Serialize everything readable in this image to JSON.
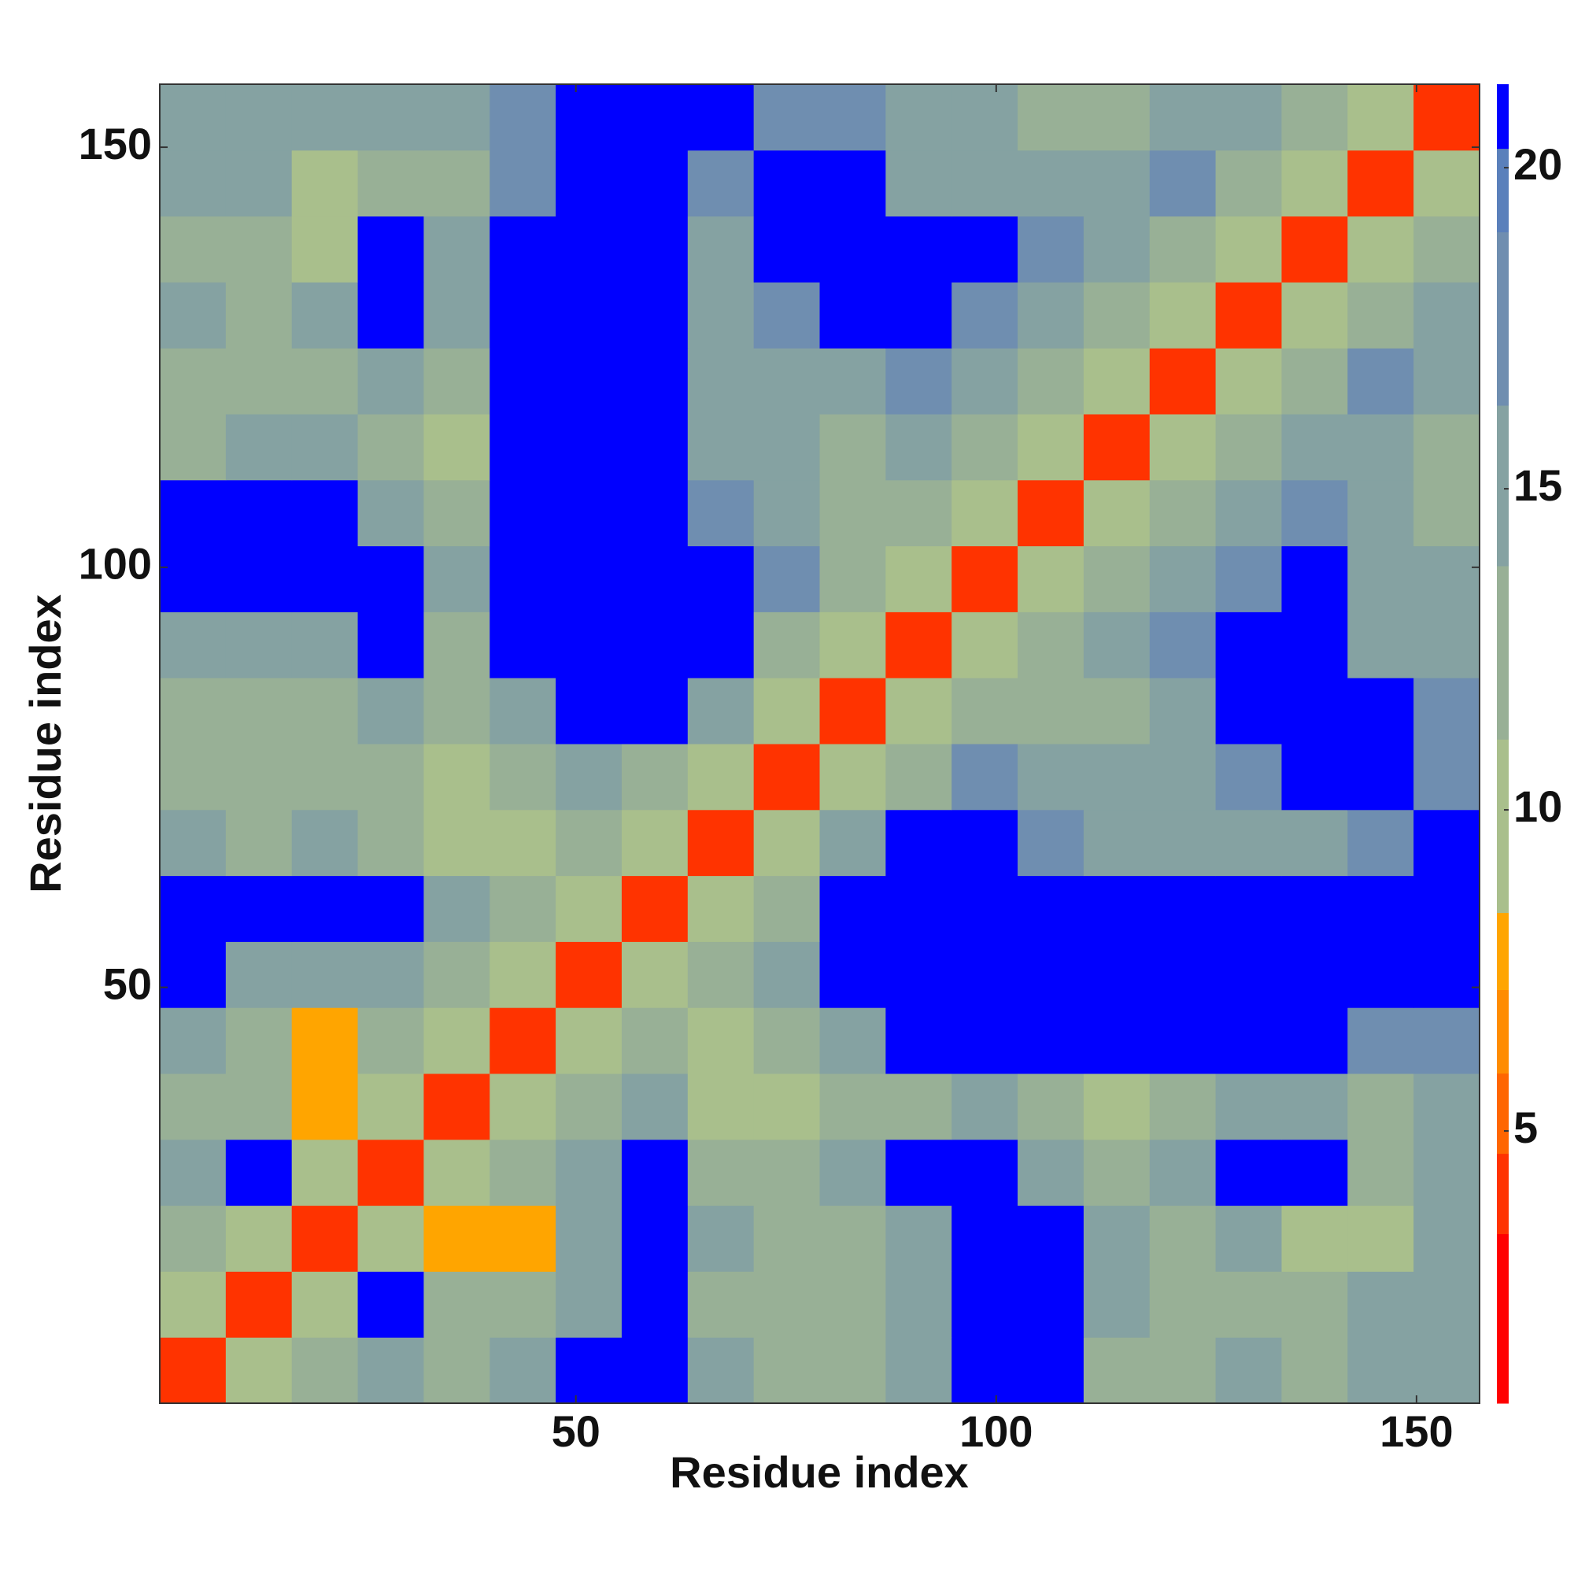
{
  "chart_data": {
    "type": "heatmap",
    "xlabel": "Residue index",
    "ylabel": "Residue index",
    "xlim": [
      0.5,
      157.5
    ],
    "ylim": [
      0.5,
      157.5
    ],
    "xticks": [
      50,
      100,
      150
    ],
    "yticks": [
      50,
      100,
      150
    ],
    "zlim": [
      0.76,
      21.3
    ],
    "colorbar_ticks": [
      5,
      10,
      15,
      20
    ],
    "levels": [
      0.76,
      3.4,
      4.65,
      5.9,
      7.2,
      8.4,
      11.1,
      13.8,
      16.3,
      19.0,
      20.3,
      21.3
    ],
    "level_colors": [
      "#ff0000",
      "#ff3300",
      "#ff6600",
      "#ff8c00",
      "#ffa500",
      "#a9bf8c",
      "#98b096",
      "#85a2a2",
      "#6f8eb0",
      "#5a80bb",
      "#0000ff"
    ],
    "z": [
      [
        4,
        10,
        13,
        16,
        13,
        16,
        21,
        21,
        16,
        13,
        13,
        16,
        21,
        21,
        13,
        13,
        16,
        13,
        16,
        16
      ],
      [
        10,
        4,
        10,
        21,
        13,
        13,
        16,
        21,
        13,
        13,
        13,
        16,
        21,
        21,
        16,
        13,
        13,
        13,
        16,
        16
      ],
      [
        13,
        10,
        4,
        10,
        8,
        8,
        16,
        21,
        16,
        13,
        13,
        16,
        21,
        21,
        16,
        13,
        16,
        10,
        10,
        16
      ],
      [
        16,
        21,
        10,
        4,
        10,
        13,
        16,
        21,
        13,
        13,
        16,
        21,
        21,
        16,
        13,
        16,
        21,
        21,
        13,
        16
      ],
      [
        13,
        13,
        8,
        10,
        4,
        10,
        13,
        16,
        10,
        10,
        13,
        13,
        16,
        13,
        10,
        13,
        16,
        16,
        13,
        16
      ],
      [
        16,
        13,
        8,
        13,
        10,
        4,
        10,
        13,
        10,
        13,
        16,
        21,
        21,
        21,
        21,
        21,
        21,
        21,
        19,
        19
      ],
      [
        21,
        16,
        16,
        16,
        13,
        10,
        4,
        10,
        13,
        16,
        21,
        21,
        21,
        21,
        21,
        21,
        21,
        21,
        21,
        21
      ],
      [
        21,
        21,
        21,
        21,
        16,
        13,
        10,
        4,
        10,
        13,
        21,
        21,
        21,
        21,
        21,
        21,
        21,
        21,
        21,
        21
      ],
      [
        16,
        13,
        16,
        13,
        10,
        10,
        13,
        10,
        4,
        10,
        16,
        21,
        21,
        19,
        16,
        16,
        16,
        16,
        19,
        21
      ],
      [
        13,
        13,
        13,
        13,
        10,
        13,
        16,
        13,
        10,
        4,
        10,
        13,
        19,
        16,
        16,
        16,
        19,
        21,
        21,
        19
      ],
      [
        13,
        13,
        13,
        16,
        13,
        16,
        21,
        21,
        16,
        10,
        4,
        10,
        13,
        13,
        13,
        16,
        21,
        21,
        21,
        19
      ],
      [
        16,
        16,
        16,
        21,
        13,
        21,
        21,
        21,
        21,
        13,
        10,
        4,
        10,
        13,
        16,
        19,
        21,
        21,
        16,
        16
      ],
      [
        21,
        21,
        21,
        21,
        16,
        21,
        21,
        21,
        21,
        19,
        13,
        10,
        4,
        10,
        13,
        16,
        19,
        21,
        16,
        16
      ],
      [
        21,
        21,
        21,
        16,
        13,
        21,
        21,
        21,
        19,
        16,
        13,
        13,
        10,
        4,
        10,
        13,
        16,
        19,
        16,
        13
      ],
      [
        13,
        16,
        16,
        13,
        10,
        21,
        21,
        21,
        16,
        16,
        13,
        16,
        13,
        10,
        4,
        10,
        13,
        16,
        16,
        13
      ],
      [
        13,
        13,
        13,
        16,
        13,
        21,
        21,
        21,
        16,
        16,
        16,
        19,
        16,
        13,
        10,
        4,
        10,
        13,
        19,
        16
      ],
      [
        16,
        13,
        16,
        21,
        16,
        21,
        21,
        21,
        16,
        19,
        21,
        21,
        19,
        16,
        13,
        10,
        4,
        10,
        13,
        16
      ],
      [
        13,
        13,
        10,
        21,
        16,
        21,
        21,
        21,
        16,
        21,
        21,
        21,
        21,
        19,
        16,
        13,
        10,
        4,
        10,
        13
      ],
      [
        16,
        16,
        10,
        13,
        13,
        19,
        21,
        21,
        19,
        21,
        21,
        16,
        16,
        16,
        16,
        19,
        13,
        10,
        4,
        10
      ],
      [
        16,
        16,
        16,
        16,
        16,
        19,
        21,
        21,
        21,
        19,
        19,
        16,
        16,
        13,
        13,
        16,
        16,
        13,
        10,
        4
      ]
    ]
  }
}
